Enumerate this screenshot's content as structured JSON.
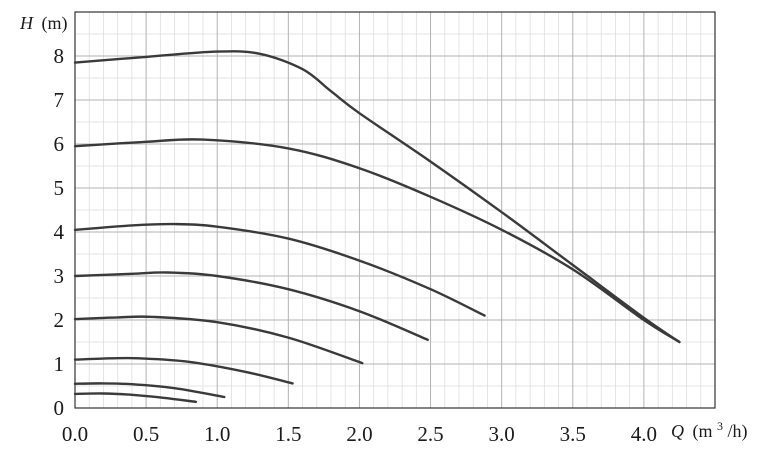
{
  "chart_data": {
    "type": "line",
    "title": "",
    "xlabel": {
      "symbol": "Q",
      "unit_prefix": "(m",
      "unit_sup": "3",
      "unit_suffix": "/h)"
    },
    "ylabel": {
      "symbol": "H",
      "unit": "(m)"
    },
    "xlim": [
      0,
      4.5
    ],
    "ylim": [
      0,
      9
    ],
    "x_ticks": [
      "0.0",
      "0.5",
      "1.0",
      "1.5",
      "2.0",
      "2.5",
      "3.0",
      "3.5",
      "4.0"
    ],
    "y_ticks": [
      "0",
      "1",
      "2",
      "3",
      "4",
      "5",
      "6",
      "7",
      "8"
    ],
    "grid": {
      "major": true,
      "minor": true
    },
    "legend": "none",
    "series": [
      {
        "x": [
          0.0,
          0.5,
          1.0,
          1.3,
          1.6,
          1.8,
          2.0,
          2.5,
          3.0,
          3.5,
          4.0,
          4.25
        ],
        "y": [
          7.85,
          7.98,
          8.1,
          8.05,
          7.7,
          7.2,
          6.7,
          5.6,
          4.45,
          3.25,
          2.05,
          1.5
        ]
      },
      {
        "x": [
          0.0,
          0.5,
          0.9,
          1.5,
          2.0,
          2.5,
          3.0,
          3.5,
          4.0,
          4.25
        ],
        "y": [
          5.95,
          6.05,
          6.1,
          5.9,
          5.45,
          4.8,
          4.05,
          3.15,
          2.0,
          1.5
        ]
      },
      {
        "x": [
          0.0,
          0.4,
          0.7,
          1.0,
          1.5,
          2.0,
          2.5,
          2.88
        ],
        "y": [
          4.05,
          4.15,
          4.18,
          4.12,
          3.85,
          3.35,
          2.7,
          2.1
        ]
      },
      {
        "x": [
          0.0,
          0.4,
          0.65,
          1.0,
          1.5,
          2.0,
          2.48
        ],
        "y": [
          3.0,
          3.05,
          3.08,
          3.0,
          2.7,
          2.2,
          1.55
        ]
      },
      {
        "x": [
          0.0,
          0.3,
          0.55,
          1.0,
          1.5,
          2.02
        ],
        "y": [
          2.02,
          2.06,
          2.07,
          1.95,
          1.6,
          1.02
        ]
      },
      {
        "x": [
          0.0,
          0.25,
          0.45,
          0.8,
          1.2,
          1.53
        ],
        "y": [
          1.1,
          1.13,
          1.13,
          1.05,
          0.82,
          0.56
        ]
      },
      {
        "x": [
          0.0,
          0.2,
          0.4,
          0.7,
          1.05
        ],
        "y": [
          0.55,
          0.56,
          0.54,
          0.45,
          0.25
        ]
      },
      {
        "x": [
          0.0,
          0.2,
          0.4,
          0.6,
          0.85
        ],
        "y": [
          0.32,
          0.33,
          0.3,
          0.24,
          0.14
        ]
      }
    ]
  }
}
